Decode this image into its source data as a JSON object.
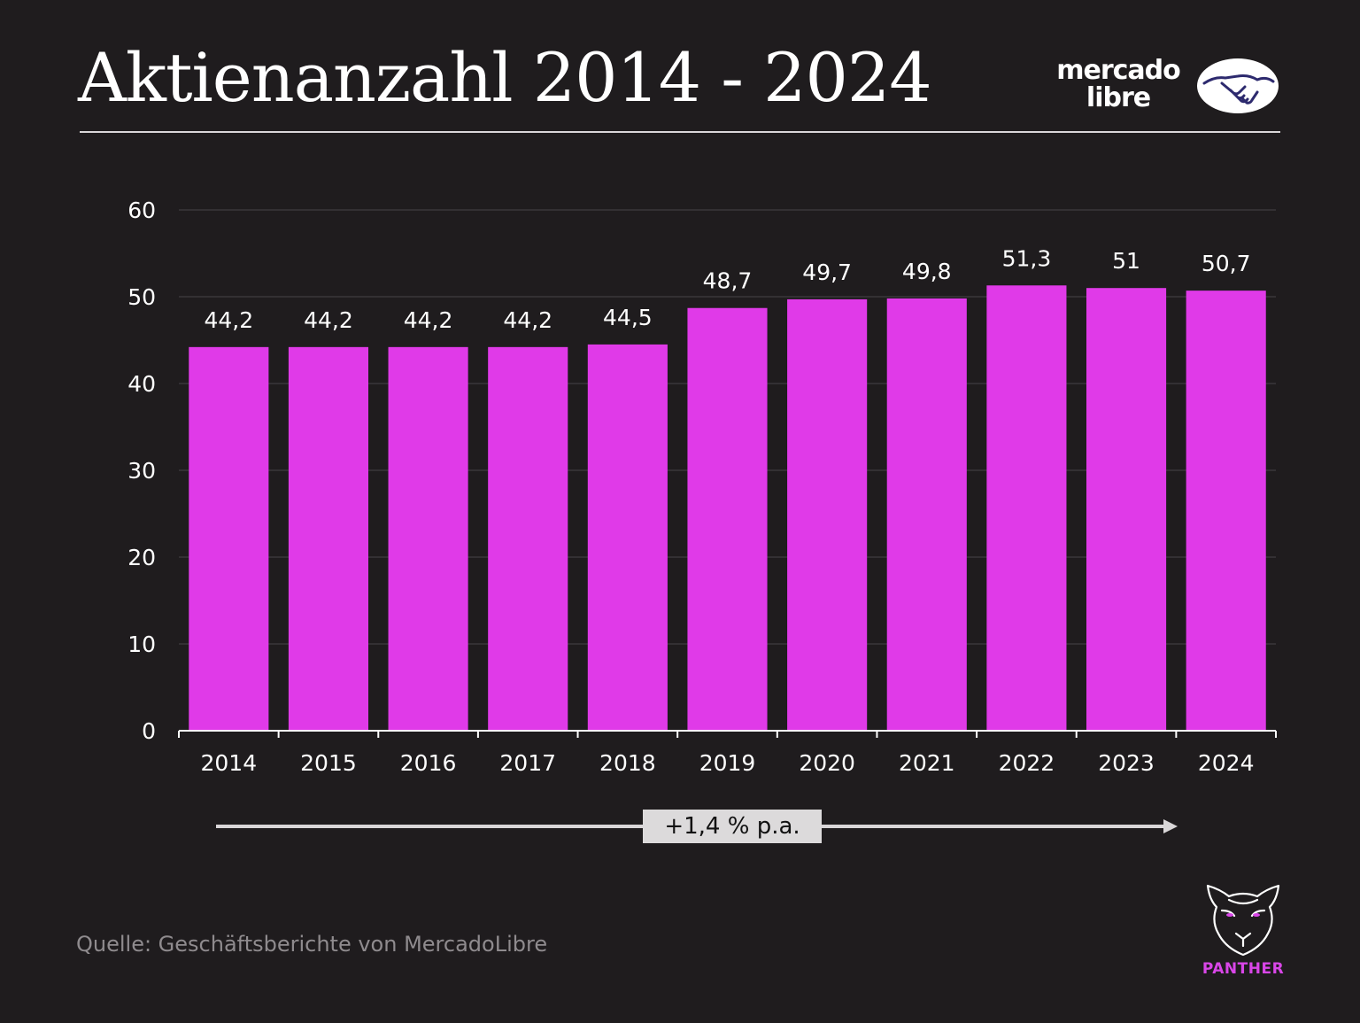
{
  "header": {
    "title": "Aktienanzahl 2014 - 2024"
  },
  "brand": {
    "line1": "mercado",
    "line2": "libre",
    "icon": "handshake-icon"
  },
  "chart_data": {
    "type": "bar",
    "categories": [
      "2014",
      "2015",
      "2016",
      "2017",
      "2018",
      "2019",
      "2020",
      "2021",
      "2022",
      "2023",
      "2024"
    ],
    "values": [
      44.2,
      44.2,
      44.2,
      44.2,
      44.5,
      48.7,
      49.7,
      49.8,
      51.3,
      51,
      50.7
    ],
    "value_labels": [
      "44,2",
      "44,2",
      "44,2",
      "44,2",
      "44,5",
      "48,7",
      "49,7",
      "49,8",
      "51,3",
      "51",
      "50,7"
    ],
    "yticks": [
      0,
      10,
      20,
      30,
      40,
      50,
      60
    ],
    "ylim": [
      0,
      60
    ],
    "grid": true,
    "bar_color": "#e03ae8",
    "grid_color": "#3a373a",
    "title": "Aktienanzahl 2014 - 2024",
    "xlabel": "",
    "ylabel": ""
  },
  "trend": {
    "label": "+1,4 % p.a."
  },
  "footer": {
    "source": "Quelle: Geschäftsberichte von MercadoLibre",
    "panther_label": "PANTHER",
    "panther_icon": "panther-head-icon"
  },
  "colors": {
    "background": "#1f1c1e",
    "accent": "#e03ae8",
    "text": "#ffffff",
    "muted": "#8f8b8e"
  }
}
